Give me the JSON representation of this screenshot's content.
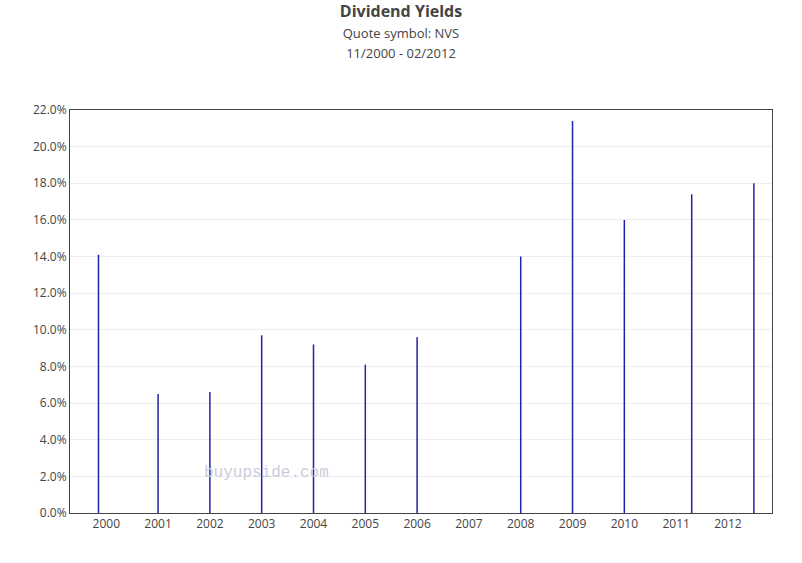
{
  "chart_data": {
    "type": "stem",
    "title": "Dividend Yields",
    "subtitle": [
      "Quote symbol: NVS",
      "11/2000 - 02/2012"
    ],
    "annotations": [
      "buyupside.com"
    ],
    "x": [
      1999.85,
      2001.0,
      2002.0,
      2003.0,
      2004.0,
      2005.0,
      2006.0,
      2008.0,
      2009.0,
      2010.0,
      2011.3,
      2012.5
    ],
    "values": [
      14.1,
      6.5,
      6.6,
      9.7,
      9.2,
      8.1,
      9.6,
      14.0,
      21.4,
      16.0,
      17.4,
      18.0
    ],
    "color": "#2222aa",
    "xlim": [
      1999.3,
      2012.85
    ],
    "xticks": [
      2000,
      2001,
      2002,
      2003,
      2004,
      2005,
      2006,
      2007,
      2008,
      2009,
      2010,
      2011,
      2012
    ],
    "ylim": [
      0,
      22.0
    ],
    "yticks": [
      {
        "value": 0,
        "label": "0.0%"
      },
      {
        "value": 2,
        "label": "2.0%"
      },
      {
        "value": 4,
        "label": "4.0%"
      },
      {
        "value": 6,
        "label": "6.0%"
      },
      {
        "value": 8,
        "label": "8.0%"
      },
      {
        "value": 10,
        "label": "10.0%"
      },
      {
        "value": 12,
        "label": "12.0%"
      },
      {
        "value": 14,
        "label": "14.0%"
      },
      {
        "value": 16,
        "label": "16.0%"
      },
      {
        "value": 18,
        "label": "18.0%"
      },
      {
        "value": 20,
        "label": "20.0%"
      },
      {
        "value": 22,
        "label": "22.0%"
      }
    ],
    "grid": "y"
  }
}
